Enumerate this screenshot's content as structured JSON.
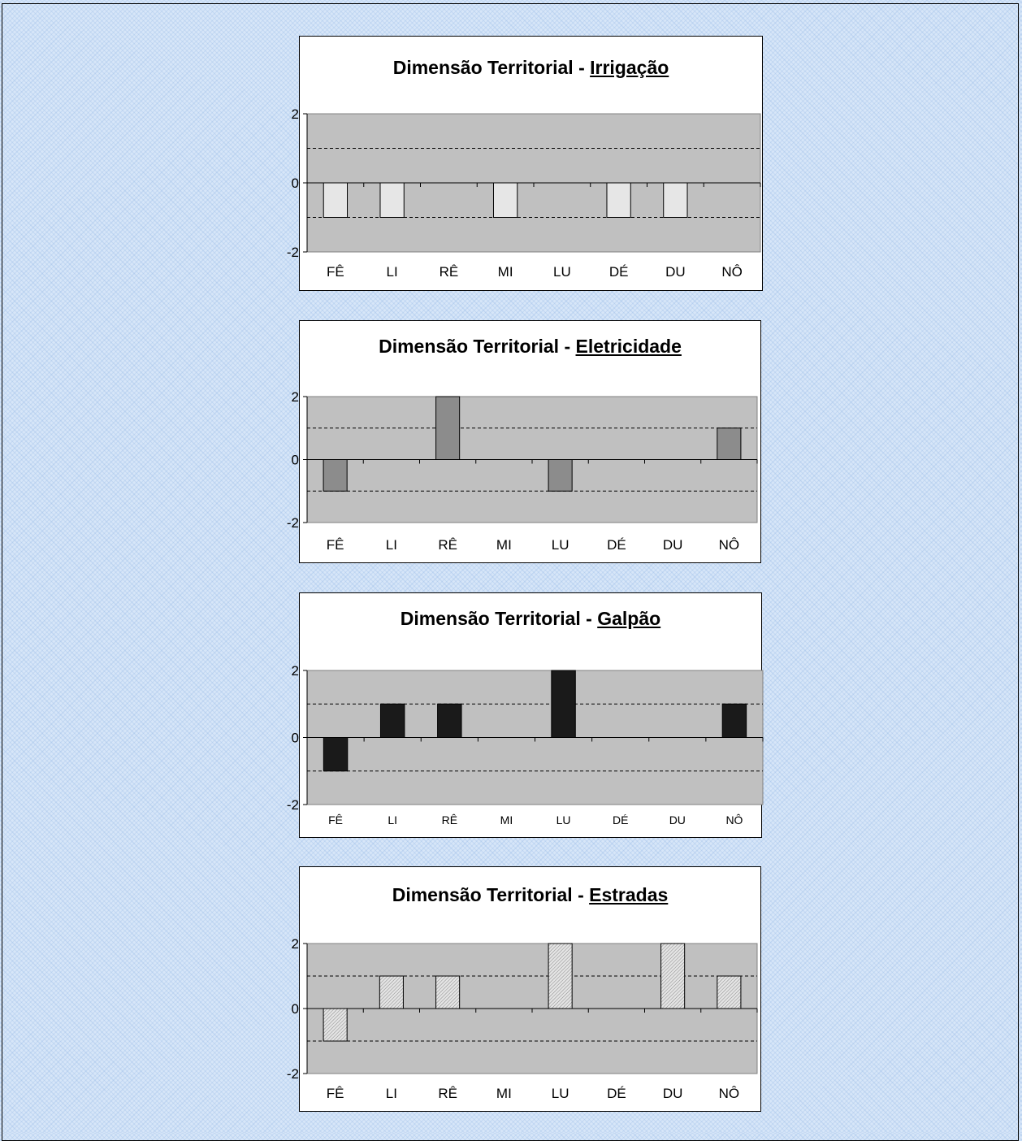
{
  "chart_data": [
    {
      "type": "bar",
      "title": "Dimensão Territorial - ",
      "title_emph": "Irrigação",
      "categories": [
        "FÊ",
        "LI",
        "RÊ",
        "MI",
        "LU",
        "DÉ",
        "DU",
        "NÔ"
      ],
      "values": [
        -1,
        -1,
        0,
        -1,
        0,
        -1,
        -1,
        0
      ],
      "ylim": [
        -2,
        2
      ],
      "yticks": [
        "2",
        "0",
        "-2"
      ],
      "bar_color": "#e6e6e6",
      "pattern": "none",
      "plot_bg": "#c0c0c0",
      "gridlines": "dashed at 1 and -1",
      "legend": "none"
    },
    {
      "type": "bar",
      "title": "Dimensão Territorial - ",
      "title_emph": "Eletricidade",
      "categories": [
        "FÊ",
        "LI",
        "RÊ",
        "MI",
        "LU",
        "DÉ",
        "DU",
        "NÔ"
      ],
      "values": [
        -1,
        0,
        2,
        0,
        -1,
        0,
        0,
        1
      ],
      "ylim": [
        -2,
        2
      ],
      "yticks": [
        "2",
        "0",
        "-2"
      ],
      "bar_color": "#8c8c8c",
      "pattern": "none",
      "plot_bg": "#c0c0c0",
      "gridlines": "dashed at 1 and -1",
      "legend": "none"
    },
    {
      "type": "bar",
      "title": "Dimensão Territorial - ",
      "title_emph": "Galpão",
      "categories": [
        "FÊ",
        "LI",
        "RÊ",
        "MI",
        "LU",
        "DÉ",
        "DU",
        "NÔ"
      ],
      "values": [
        -1,
        1,
        1,
        0,
        2,
        0,
        0,
        1
      ],
      "ylim": [
        -2,
        2
      ],
      "yticks": [
        "2",
        "0",
        "-2"
      ],
      "bar_color": "#1a1a1a",
      "pattern": "none",
      "plot_bg": "#c0c0c0",
      "gridlines": "dashed at 1 and -1",
      "legend": "none"
    },
    {
      "type": "bar",
      "title": "Dimensão Territorial - ",
      "title_emph": "Estradas",
      "categories": [
        "FÊ",
        "LI",
        "RÊ",
        "MI",
        "LU",
        "DÉ",
        "DU",
        "NÔ"
      ],
      "values": [
        -1,
        1,
        1,
        0,
        2,
        0,
        2,
        1
      ],
      "ylim": [
        -2,
        2
      ],
      "yticks": [
        "2",
        "0",
        "-2"
      ],
      "bar_color": "#c8c8c8",
      "pattern": "diagonal-hatch",
      "plot_bg": "#c0c0c0",
      "gridlines": "dashed at 1 and -1",
      "legend": "none"
    }
  ]
}
